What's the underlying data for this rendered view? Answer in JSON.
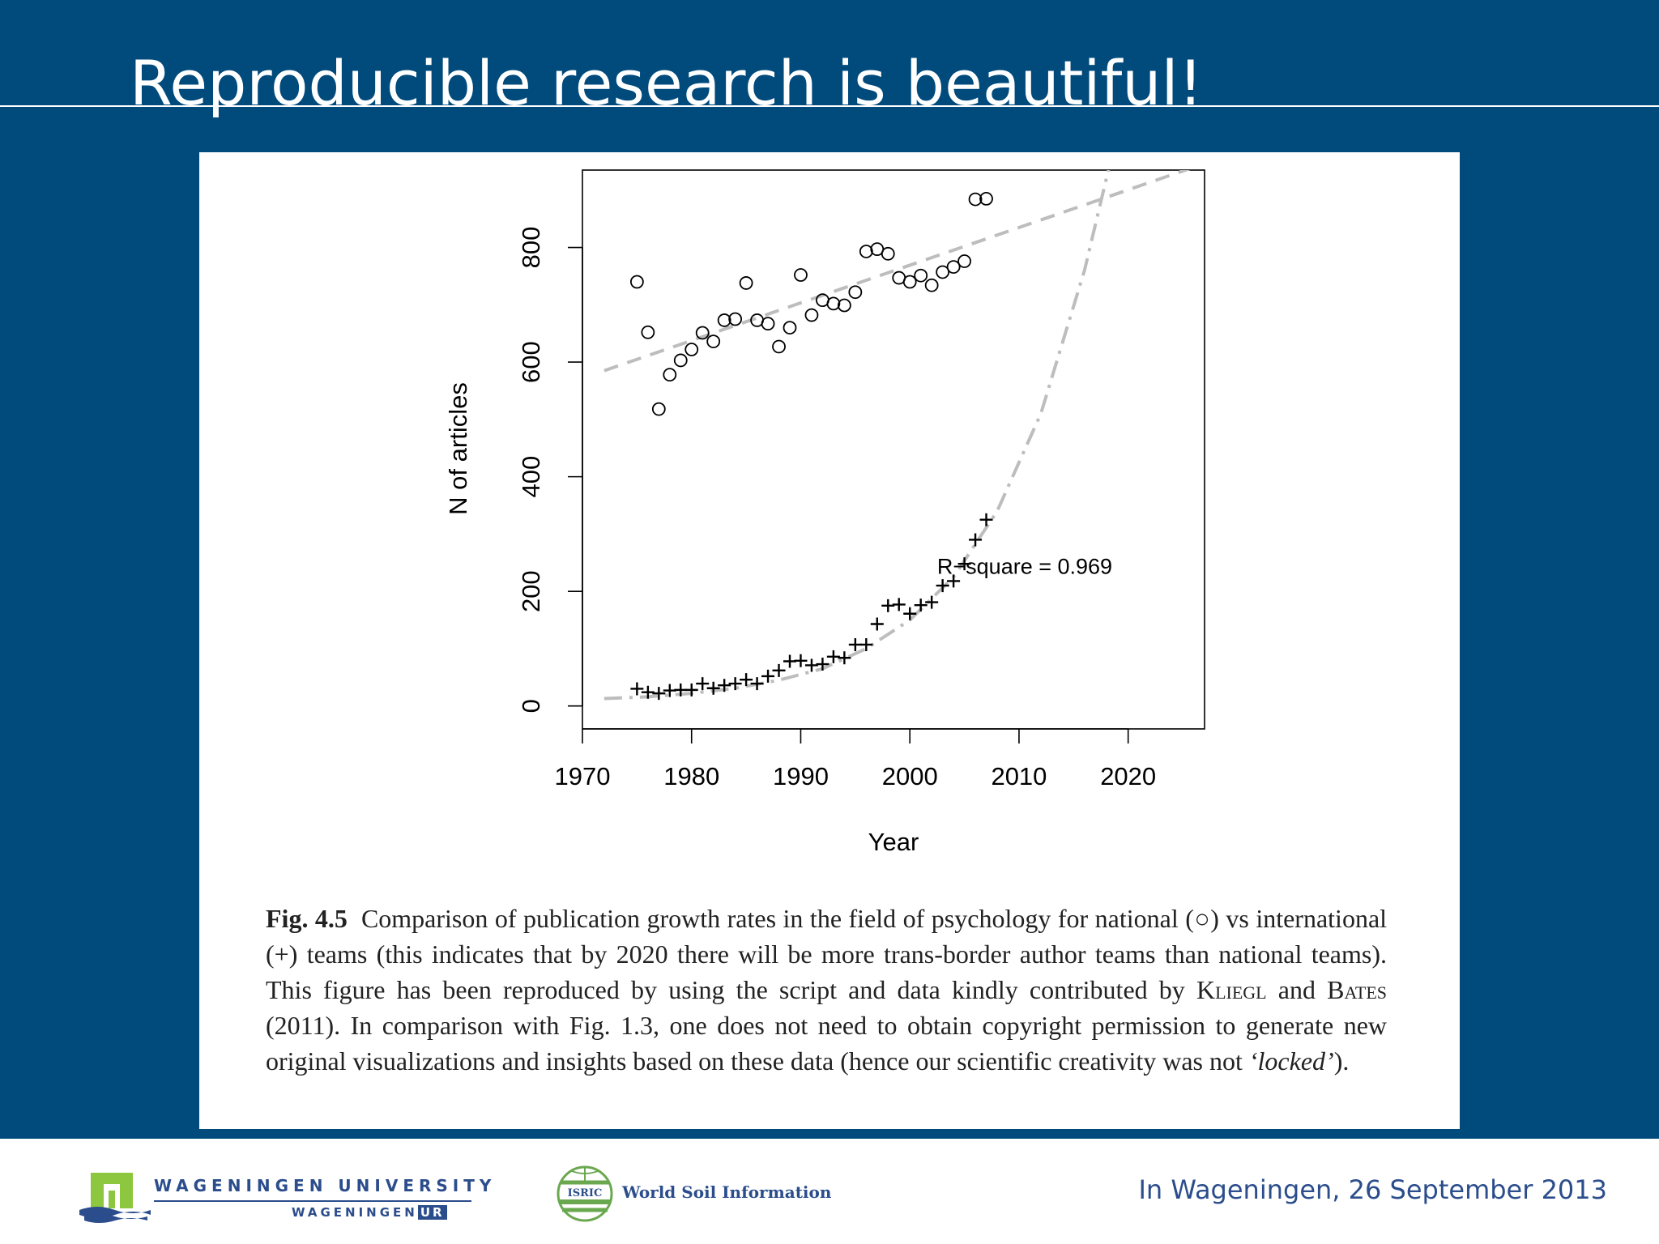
{
  "slide": {
    "title": "Reproducible research is beautiful!"
  },
  "caption": {
    "fig_label": "Fig. 4.5",
    "text_before_symbol": "Comparison of publication growth rates in the field of psychology for national (",
    "national_symbol": "○",
    "text_middle": ") vs international (+) teams (this indicates that by 2020 there will be more trans-border author teams than national teams). This figure has been reproduced by using the script and data kindly contributed by ",
    "author1": "Kliegl",
    "and_word": " and ",
    "author2": "Bates",
    "text_after_authors": " (2011). In comparison with Fig. 1.3, one does not need to obtain copyright permission to generate new original visualizations and insights based on these data (hence our scientific creativity was not ",
    "locked_word": "‘locked’",
    "text_end": ")."
  },
  "footer": {
    "university_line1": "WAGENINGEN UNIVERSITY",
    "university_line2": "WAGENINGEN",
    "university_ur": "UR",
    "isric_logo_text": "ISRIC",
    "isric_name": "World Soil Information",
    "date_text": "In Wageningen, 26 September 2013"
  },
  "chart_data": {
    "type": "scatter",
    "xlabel": "Year",
    "ylabel": "N of articles",
    "xlim": [
      1970,
      2027
    ],
    "ylim": [
      -40,
      935
    ],
    "x_ticks": [
      1970,
      1980,
      1990,
      2000,
      2010,
      2020
    ],
    "y_ticks": [
      0,
      200,
      400,
      600,
      800
    ],
    "annotation": "R−square = 0.969",
    "annotation_position": [
      2002.5,
      243
    ],
    "grid": false,
    "legend": "none",
    "series": [
      {
        "marker": "circle",
        "x": [
          1975,
          1976,
          1977,
          1978,
          1979,
          1980,
          1981,
          1982,
          1983,
          1984,
          1985,
          1986,
          1987,
          1988,
          1989,
          1990,
          1991,
          1992,
          1993,
          1994,
          1995,
          1996,
          1997,
          1998,
          1999,
          2000,
          2001,
          2002,
          2003,
          2004,
          2005,
          2006,
          2007
        ],
        "y": [
          740,
          652,
          518,
          578,
          603,
          622,
          651,
          636,
          673,
          675,
          738,
          673,
          667,
          627,
          660,
          752,
          682,
          708,
          702,
          699,
          722,
          793,
          797,
          789,
          747,
          740,
          751,
          734,
          757,
          766,
          776,
          884,
          885
        ]
      },
      {
        "marker": "plus",
        "x": [
          1975,
          1976,
          1977,
          1978,
          1979,
          1980,
          1981,
          1982,
          1983,
          1984,
          1985,
          1986,
          1987,
          1988,
          1989,
          1990,
          1991,
          1992,
          1993,
          1994,
          1995,
          1996,
          1997,
          1998,
          1999,
          2000,
          2001,
          2002,
          2003,
          2004,
          2005,
          2006,
          2007
        ],
        "y": [
          30,
          24,
          22,
          27,
          28,
          28,
          39,
          31,
          36,
          39,
          46,
          39,
          52,
          62,
          78,
          79,
          71,
          73,
          86,
          84,
          107,
          107,
          143,
          175,
          177,
          161,
          176,
          181,
          210,
          218,
          248,
          290,
          325
        ]
      }
    ],
    "fits": [
      {
        "style": "dashed",
        "color": "#bdbdbd",
        "x": [
          1972,
          2026
        ],
        "y": [
          585,
          940
        ]
      },
      {
        "style": "dashdot",
        "color": "#bdbdbd",
        "x": [
          1972,
          1976,
          1980,
          1984,
          1988,
          1992,
          1996,
          2000,
          2004,
          2008,
          2012,
          2016,
          2019
        ],
        "y": [
          13,
          16,
          22,
          31,
          45,
          65,
          100,
          150,
          225,
          340,
          510,
          760,
          1000
        ]
      }
    ]
  }
}
